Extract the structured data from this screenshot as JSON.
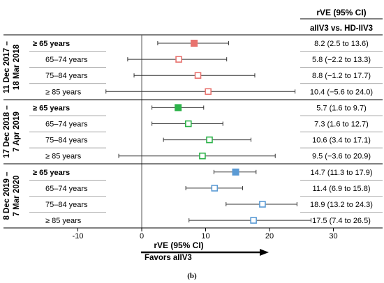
{
  "chart_data": {
    "type": "forest",
    "header": {
      "estimate_title": "rVE (95% CI)",
      "comparison": "aIIV3 vs. HD-IIV3"
    },
    "xlabel": "rVE (95% CI)",
    "xlim": [
      -10,
      30
    ],
    "xticks": [
      "-10",
      "0",
      "10",
      "20",
      "30"
    ],
    "favors_label": "Favors aIIV3",
    "caption": "(b)",
    "groups": [
      {
        "season": "11 Dec 2017 – 18 Mar 2018",
        "season_lines": [
          "11 Dec 2017 –",
          "18 Mar 2018"
        ],
        "color": "#e8736f",
        "rows": [
          {
            "label": "≥ 65 years",
            "bold": true,
            "est": 8.2,
            "lo": 2.5,
            "hi": 13.6,
            "text": "8.2 (2.5 to 13.6)",
            "filled": true
          },
          {
            "label": "65–74 years",
            "bold": false,
            "est": 5.8,
            "lo": -2.2,
            "hi": 13.3,
            "text": "5.8 (−2.2 to 13.3)",
            "filled": false
          },
          {
            "label": "75–84 years",
            "bold": false,
            "est": 8.8,
            "lo": -1.2,
            "hi": 17.7,
            "text": "8.8 (−1.2 to 17.7)",
            "filled": false
          },
          {
            "label": "≥ 85 years",
            "bold": false,
            "est": 10.4,
            "lo": -5.6,
            "hi": 24.0,
            "text": "10.4 (−5.6 to 24.0)",
            "filled": false
          }
        ]
      },
      {
        "season": "17 Dec 2018 – 7 Apr 2019",
        "season_lines": [
          "17 Dec 2018 –",
          "7 Apr 2019"
        ],
        "color": "#2db34a",
        "rows": [
          {
            "label": "≥ 65 years",
            "bold": true,
            "est": 5.7,
            "lo": 1.6,
            "hi": 9.7,
            "text": "5.7 (1.6 to 9.7)",
            "filled": true
          },
          {
            "label": "65–74 years",
            "bold": false,
            "est": 7.3,
            "lo": 1.6,
            "hi": 12.7,
            "text": "7.3 (1.6 to 12.7)",
            "filled": false
          },
          {
            "label": "75–84 years",
            "bold": false,
            "est": 10.6,
            "lo": 3.4,
            "hi": 17.1,
            "text": "10.6 (3.4 to 17.1)",
            "filled": false
          },
          {
            "label": "≥ 85 years",
            "bold": false,
            "est": 9.5,
            "lo": -3.6,
            "hi": 20.9,
            "text": "9.5 (−3.6 to 20.9)",
            "filled": false
          }
        ]
      },
      {
        "season": "8 Dec 2019 – 7 Mar 2020",
        "season_lines": [
          "8 Dec 2019 –",
          "7 Mar 2020"
        ],
        "color": "#5b9bd5",
        "rows": [
          {
            "label": "≥ 65 years",
            "bold": true,
            "est": 14.7,
            "lo": 11.3,
            "hi": 17.9,
            "text": "14.7 (11.3 to 17.9)",
            "filled": true
          },
          {
            "label": "65–74 years",
            "bold": false,
            "est": 11.4,
            "lo": 6.9,
            "hi": 15.8,
            "text": "11.4 (6.9 to 15.8)",
            "filled": false
          },
          {
            "label": "75–84 years",
            "bold": false,
            "est": 18.9,
            "lo": 13.2,
            "hi": 24.3,
            "text": "18.9 (13.2 to 24.3)",
            "filled": false
          },
          {
            "label": "≥ 85 years",
            "bold": false,
            "est": 17.5,
            "lo": 7.4,
            "hi": 26.5,
            "text": "17.5 (7.4 to 26.5)",
            "filled": false
          }
        ]
      }
    ]
  }
}
